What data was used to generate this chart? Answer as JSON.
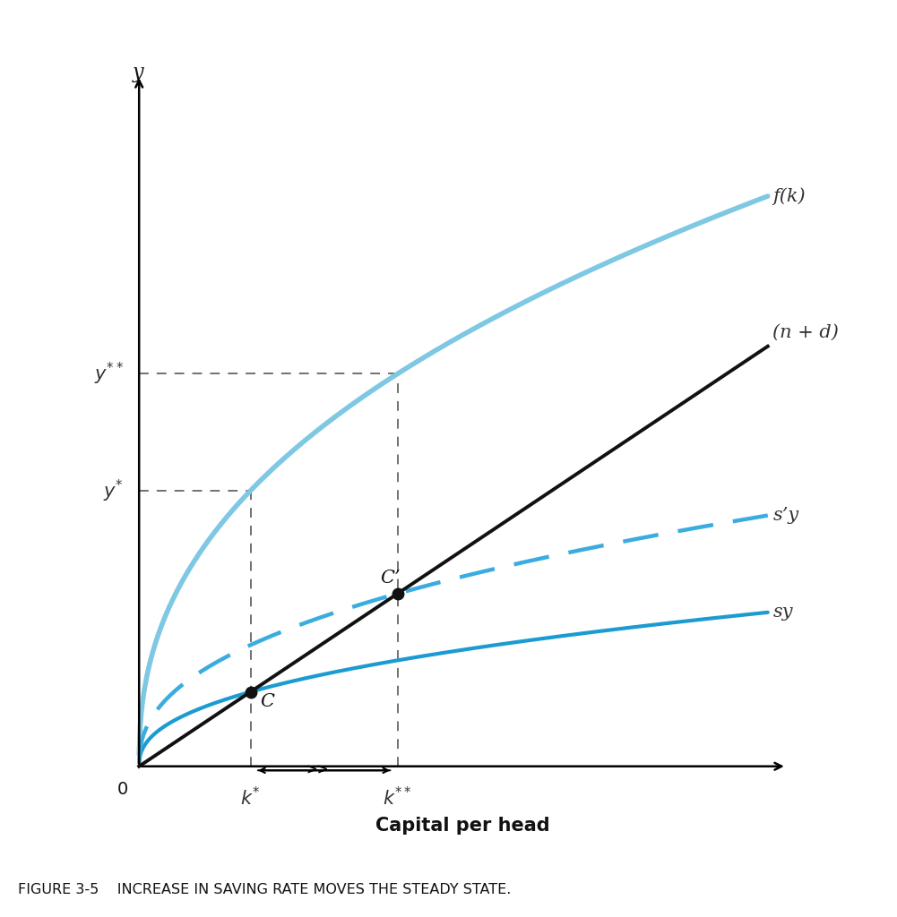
{
  "title": "",
  "xlabel": "Capital per head",
  "ylabel": "y",
  "caption": "FIGURE 3-5    INCREASE IN SAVING RATE MOVES THE STEADY STATE.",
  "xlim": [
    0,
    10
  ],
  "ylim": [
    0,
    10
  ],
  "alpha": 0.42,
  "A": 3.2,
  "s": 0.27,
  "s_prime": 0.44,
  "nd_slope": 0.62,
  "fk_color": "#7EC8E3",
  "sy_color": "#1B9BD1",
  "sy_prime_color": "#3AACDF",
  "nd_color": "#111111",
  "ref_dash_color": "#666666",
  "background_color": "#FFFFFF",
  "label_fk": "f(k)",
  "label_sy": "sy",
  "label_spy": "s’y",
  "label_nd": "(n + d)",
  "label_C": "C",
  "label_Cprime": "C’",
  "label_kstar": "k*",
  "label_kstar2": "k**",
  "label_ystar": "y*",
  "label_ystar2": "y**",
  "label_origin": "0",
  "label_ylabel": "y"
}
